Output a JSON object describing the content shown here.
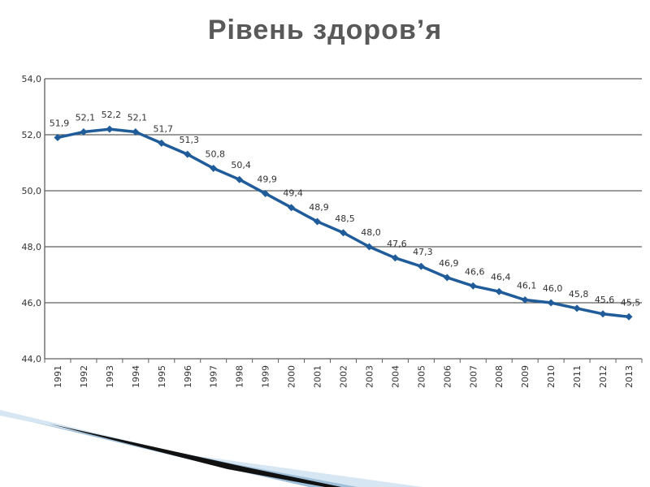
{
  "slide": {
    "title": "Рівень здоров’я"
  },
  "colors": {
    "line": "#1f5c99",
    "grid": "#5f5f5f",
    "text": "#333333",
    "title": "#595959"
  },
  "chart_data": {
    "type": "line",
    "title": "",
    "xlabel": "",
    "ylabel": "",
    "x": [
      "1991",
      "1992",
      "1993",
      "1994",
      "1995",
      "1996",
      "1997",
      "1998",
      "1999",
      "2000",
      "2001",
      "2002",
      "2003",
      "2004",
      "2005",
      "2006",
      "2007",
      "2008",
      "2009",
      "2010",
      "2011",
      "2012",
      "2013"
    ],
    "values": [
      51.9,
      52.1,
      52.2,
      52.1,
      51.7,
      51.3,
      50.8,
      50.4,
      49.9,
      49.4,
      48.9,
      48.5,
      48.0,
      47.6,
      47.3,
      46.9,
      46.6,
      46.4,
      46.1,
      46.0,
      45.8,
      45.6,
      45.5
    ],
    "value_labels": [
      "51,9",
      "52,1",
      "52,2",
      "52,1",
      "51,7",
      "51,3",
      "50,8",
      "50,4",
      "49,9",
      "49,4",
      "48,9",
      "48,5",
      "48,0",
      "47,6",
      "47,3",
      "46,9",
      "46,6",
      "46,4",
      "46,1",
      "46,0",
      "45,8",
      "45,6",
      "45,5"
    ],
    "yticks": [
      44,
      46,
      48,
      50,
      52,
      54
    ],
    "ytick_labels": [
      "44,0",
      "46,0",
      "48,0",
      "50,0",
      "52,0",
      "54,0"
    ],
    "ylim": [
      44,
      54
    ],
    "grid": true,
    "legend": "none"
  }
}
